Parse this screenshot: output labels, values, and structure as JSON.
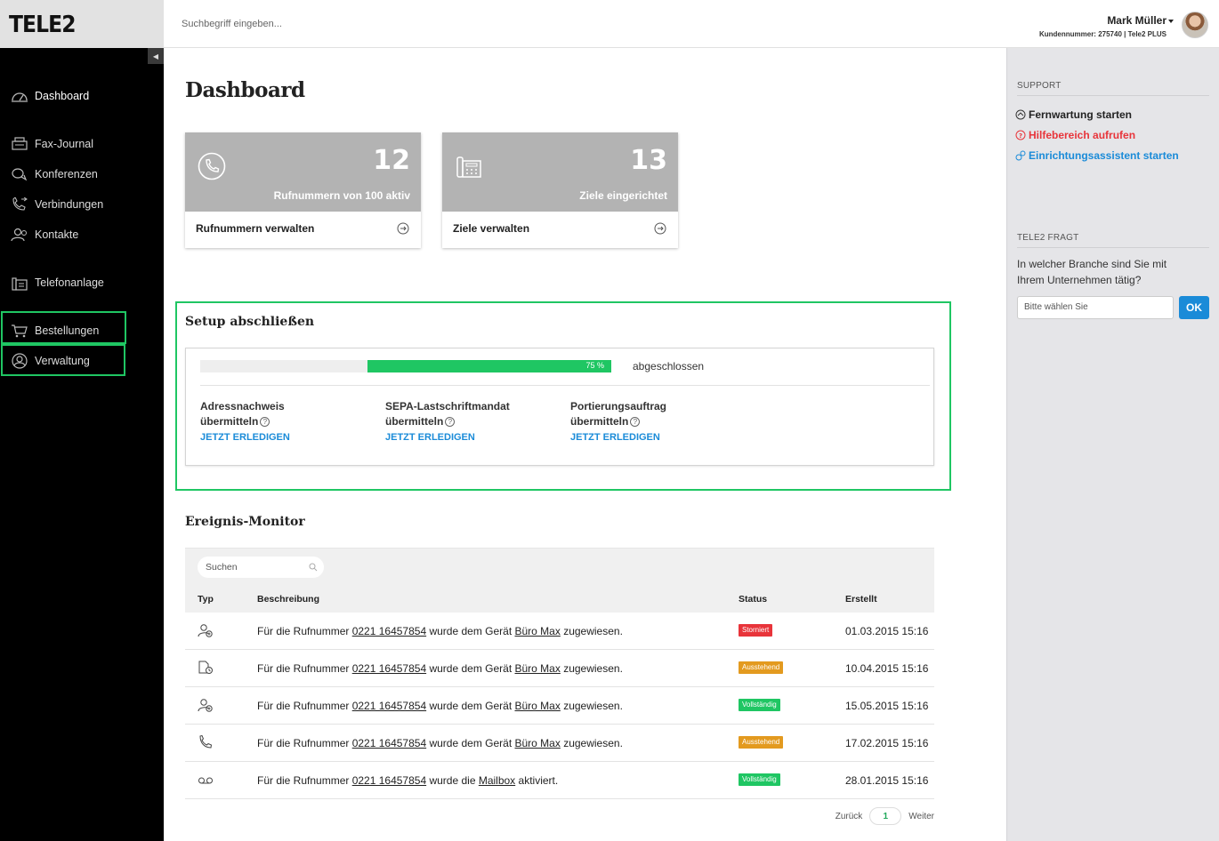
{
  "brand": {
    "logo_text": "TELE2"
  },
  "header": {
    "search_placeholder": "Suchbegriff eingeben...",
    "user_name": "Mark Müller",
    "user_meta": "Kundennummer: 275740 | Tele2 PLUS"
  },
  "sidebar": {
    "collapse_glyph": "◀",
    "items": [
      {
        "label": "Dashboard",
        "icon": "speedometer-icon"
      },
      {
        "label": "Fax-Journal",
        "icon": "fax-icon"
      },
      {
        "label": "Konferenzen",
        "icon": "conference-icon"
      },
      {
        "label": "Verbindungen",
        "icon": "connections-icon"
      },
      {
        "label": "Kontakte",
        "icon": "contacts-icon"
      },
      {
        "label": "Telefonanlage",
        "icon": "phone-system-icon"
      },
      {
        "label": "Bestellungen",
        "icon": "cart-icon"
      },
      {
        "label": "Verwaltung",
        "icon": "user-circle-icon"
      }
    ]
  },
  "main": {
    "title": "Dashboard",
    "cards": [
      {
        "number": "12",
        "subtitle": "Rufnummern von 100 aktiv",
        "action": "Rufnummern verwalten",
        "icon": "phone-icon"
      },
      {
        "number": "13",
        "subtitle": "Ziele eingerichtet",
        "action": "Ziele verwalten",
        "icon": "desk-phone-icon"
      }
    ],
    "setup": {
      "title": "Setup abschließen",
      "progress": 75,
      "progress_label": "75 %",
      "status": "abgeschlossen",
      "tasks": [
        {
          "line1": "Adressnachweis",
          "line2": "übermitteln",
          "help": "?",
          "link": "JETZT ERLEDIGEN"
        },
        {
          "line1": "SEPA-Lastschriftmandat",
          "line2": "übermitteln",
          "help": "?",
          "link": "JETZT ERLEDIGEN"
        },
        {
          "line1": "Portierungsauftrag",
          "line2": "übermitteln",
          "help": "?",
          "link": "JETZT ERLEDIGEN"
        }
      ]
    },
    "monitor": {
      "title": "Ereignis-Monitor",
      "search_placeholder": "Suchen",
      "columns": {
        "type": "Typ",
        "description": "Beschreibung",
        "status": "Status",
        "created": "Erstellt"
      },
      "rows": [
        {
          "icon": "user-add-icon",
          "pre": "Für die Rufnummer ",
          "number": "0221 16457854",
          "mid": " wurde dem Gerät ",
          "target": "Büro Max",
          "post": " zugewiesen.",
          "status": "Storniert",
          "status_color": "#e8343a",
          "date": "01.03.2015 15:16"
        },
        {
          "icon": "document-clock-icon",
          "pre": "Für die Rufnummer ",
          "number": "0221 16457854",
          "mid": " wurde dem Gerät ",
          "target": "Büro Max",
          "post": " zugewiesen.",
          "status": "Ausstehend",
          "status_color": "#e39a1f",
          "date": "10.04.2015 15:16"
        },
        {
          "icon": "user-add-icon",
          "pre": "Für die Rufnummer ",
          "number": "0221 16457854",
          "mid": " wurde dem Gerät ",
          "target": "Büro Max",
          "post": " zugewiesen.",
          "status": "Vollständig",
          "status_color": "#1fc663",
          "date": "15.05.2015 15:16"
        },
        {
          "icon": "phone-icon",
          "pre": "Für die Rufnummer ",
          "number": "0221 16457854",
          "mid": " wurde dem Gerät ",
          "target": "Büro Max",
          "post": " zugewiesen.",
          "status": "Ausstehend",
          "status_color": "#e39a1f",
          "date": "17.02.2015 15:16"
        },
        {
          "icon": "voicemail-icon",
          "pre": "Für die Rufnummer ",
          "number": "0221 16457854",
          "mid": " wurde die ",
          "target": "Mailbox",
          "post": " aktiviert.",
          "status": "Vollständig",
          "status_color": "#1fc663",
          "date": "28.01.2015 15:16"
        }
      ],
      "pager": {
        "prev": "Zurück",
        "page": "1",
        "next": "Weiter"
      }
    }
  },
  "right_panel": {
    "support_head": "SUPPORT",
    "support_links": [
      {
        "label": "Fernwartung starten",
        "color": "#333333",
        "icon": "remote-icon"
      },
      {
        "label": "Hilfebereich aufrufen",
        "color": "#e8343a",
        "icon": "help-icon"
      },
      {
        "label": "Einrichtungsassistent starten",
        "color": "#1a8bd8",
        "icon": "wizard-icon"
      }
    ],
    "survey_head": "TELE2 FRAGT",
    "survey_question": "In welcher Branche sind Sie mit Ihrem Unternehmen tätig?",
    "select_placeholder": "Bitte wählen Sie",
    "ok_label": "OK"
  }
}
